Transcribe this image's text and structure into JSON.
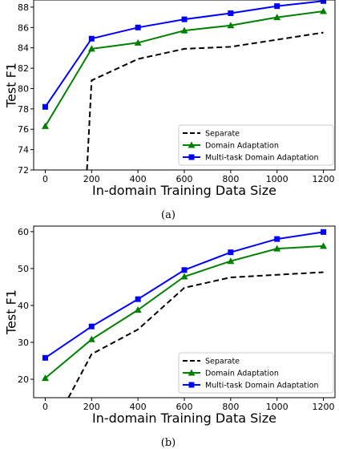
{
  "chart_data": [
    {
      "type": "line",
      "caption": "(a)",
      "xlabel": "In-domain Training Data Size",
      "ylabel": "Test F1",
      "x": [
        0,
        200,
        400,
        600,
        800,
        1000,
        1200
      ],
      "xticks": [
        "0",
        "200",
        "400",
        "600",
        "800",
        "1000",
        "1200"
      ],
      "yticks": [
        "72",
        "74",
        "76",
        "78",
        "80",
        "82",
        "84",
        "86",
        "88"
      ],
      "xlim": [
        -50,
        1250
      ],
      "ylim": [
        72,
        88.7
      ],
      "grid": false,
      "legend_position": "bottom-right",
      "series": [
        {
          "name": "Separate",
          "color": "#000000",
          "style": "dashed",
          "marker": "none",
          "x": [
            180,
            200,
            400,
            600,
            800,
            1000,
            1200
          ],
          "values": [
            72,
            80.8,
            82.9,
            83.9,
            84.1,
            84.8,
            85.5
          ]
        },
        {
          "name": "Domain Adaptation",
          "color": "#008000",
          "style": "solid",
          "marker": "triangle",
          "x": [
            0,
            200,
            400,
            600,
            800,
            1000,
            1200
          ],
          "values": [
            76.3,
            83.9,
            84.5,
            85.7,
            86.2,
            87.0,
            87.6
          ]
        },
        {
          "name": "Multi-task Domain Adaptation",
          "color": "#0000ff",
          "style": "solid",
          "marker": "square",
          "x": [
            0,
            200,
            400,
            600,
            800,
            1000,
            1200
          ],
          "values": [
            78.2,
            84.9,
            86.0,
            86.8,
            87.4,
            88.1,
            88.6
          ]
        }
      ]
    },
    {
      "type": "line",
      "caption": "(b)",
      "xlabel": "In-domain Training Data Size",
      "ylabel": "Test F1",
      "x": [
        0,
        200,
        400,
        600,
        800,
        1000,
        1200
      ],
      "xticks": [
        "0",
        "200",
        "400",
        "600",
        "800",
        "1000",
        "1200"
      ],
      "yticks": [
        "20",
        "30",
        "40",
        "50",
        "60"
      ],
      "xlim": [
        -50,
        1250
      ],
      "ylim": [
        15,
        61.5
      ],
      "grid": false,
      "legend_position": "bottom-right",
      "series": [
        {
          "name": "Separate",
          "color": "#000000",
          "style": "dashed",
          "marker": "none",
          "x": [
            100,
            200,
            400,
            600,
            800,
            1000,
            1200
          ],
          "values": [
            15,
            26.8,
            33.5,
            44.8,
            47.6,
            48.3,
            49.0
          ]
        },
        {
          "name": "Domain Adaptation",
          "color": "#008000",
          "style": "solid",
          "marker": "triangle",
          "x": [
            0,
            200,
            400,
            600,
            800,
            1000,
            1200
          ],
          "values": [
            20.3,
            30.8,
            38.8,
            47.8,
            52.0,
            55.4,
            56.1
          ]
        },
        {
          "name": "Multi-task Domain Adaptation",
          "color": "#0000ff",
          "style": "solid",
          "marker": "square",
          "x": [
            0,
            200,
            400,
            600,
            800,
            1000,
            1200
          ],
          "values": [
            25.8,
            34.3,
            41.7,
            49.6,
            54.4,
            58.0,
            59.9
          ]
        }
      ]
    }
  ]
}
